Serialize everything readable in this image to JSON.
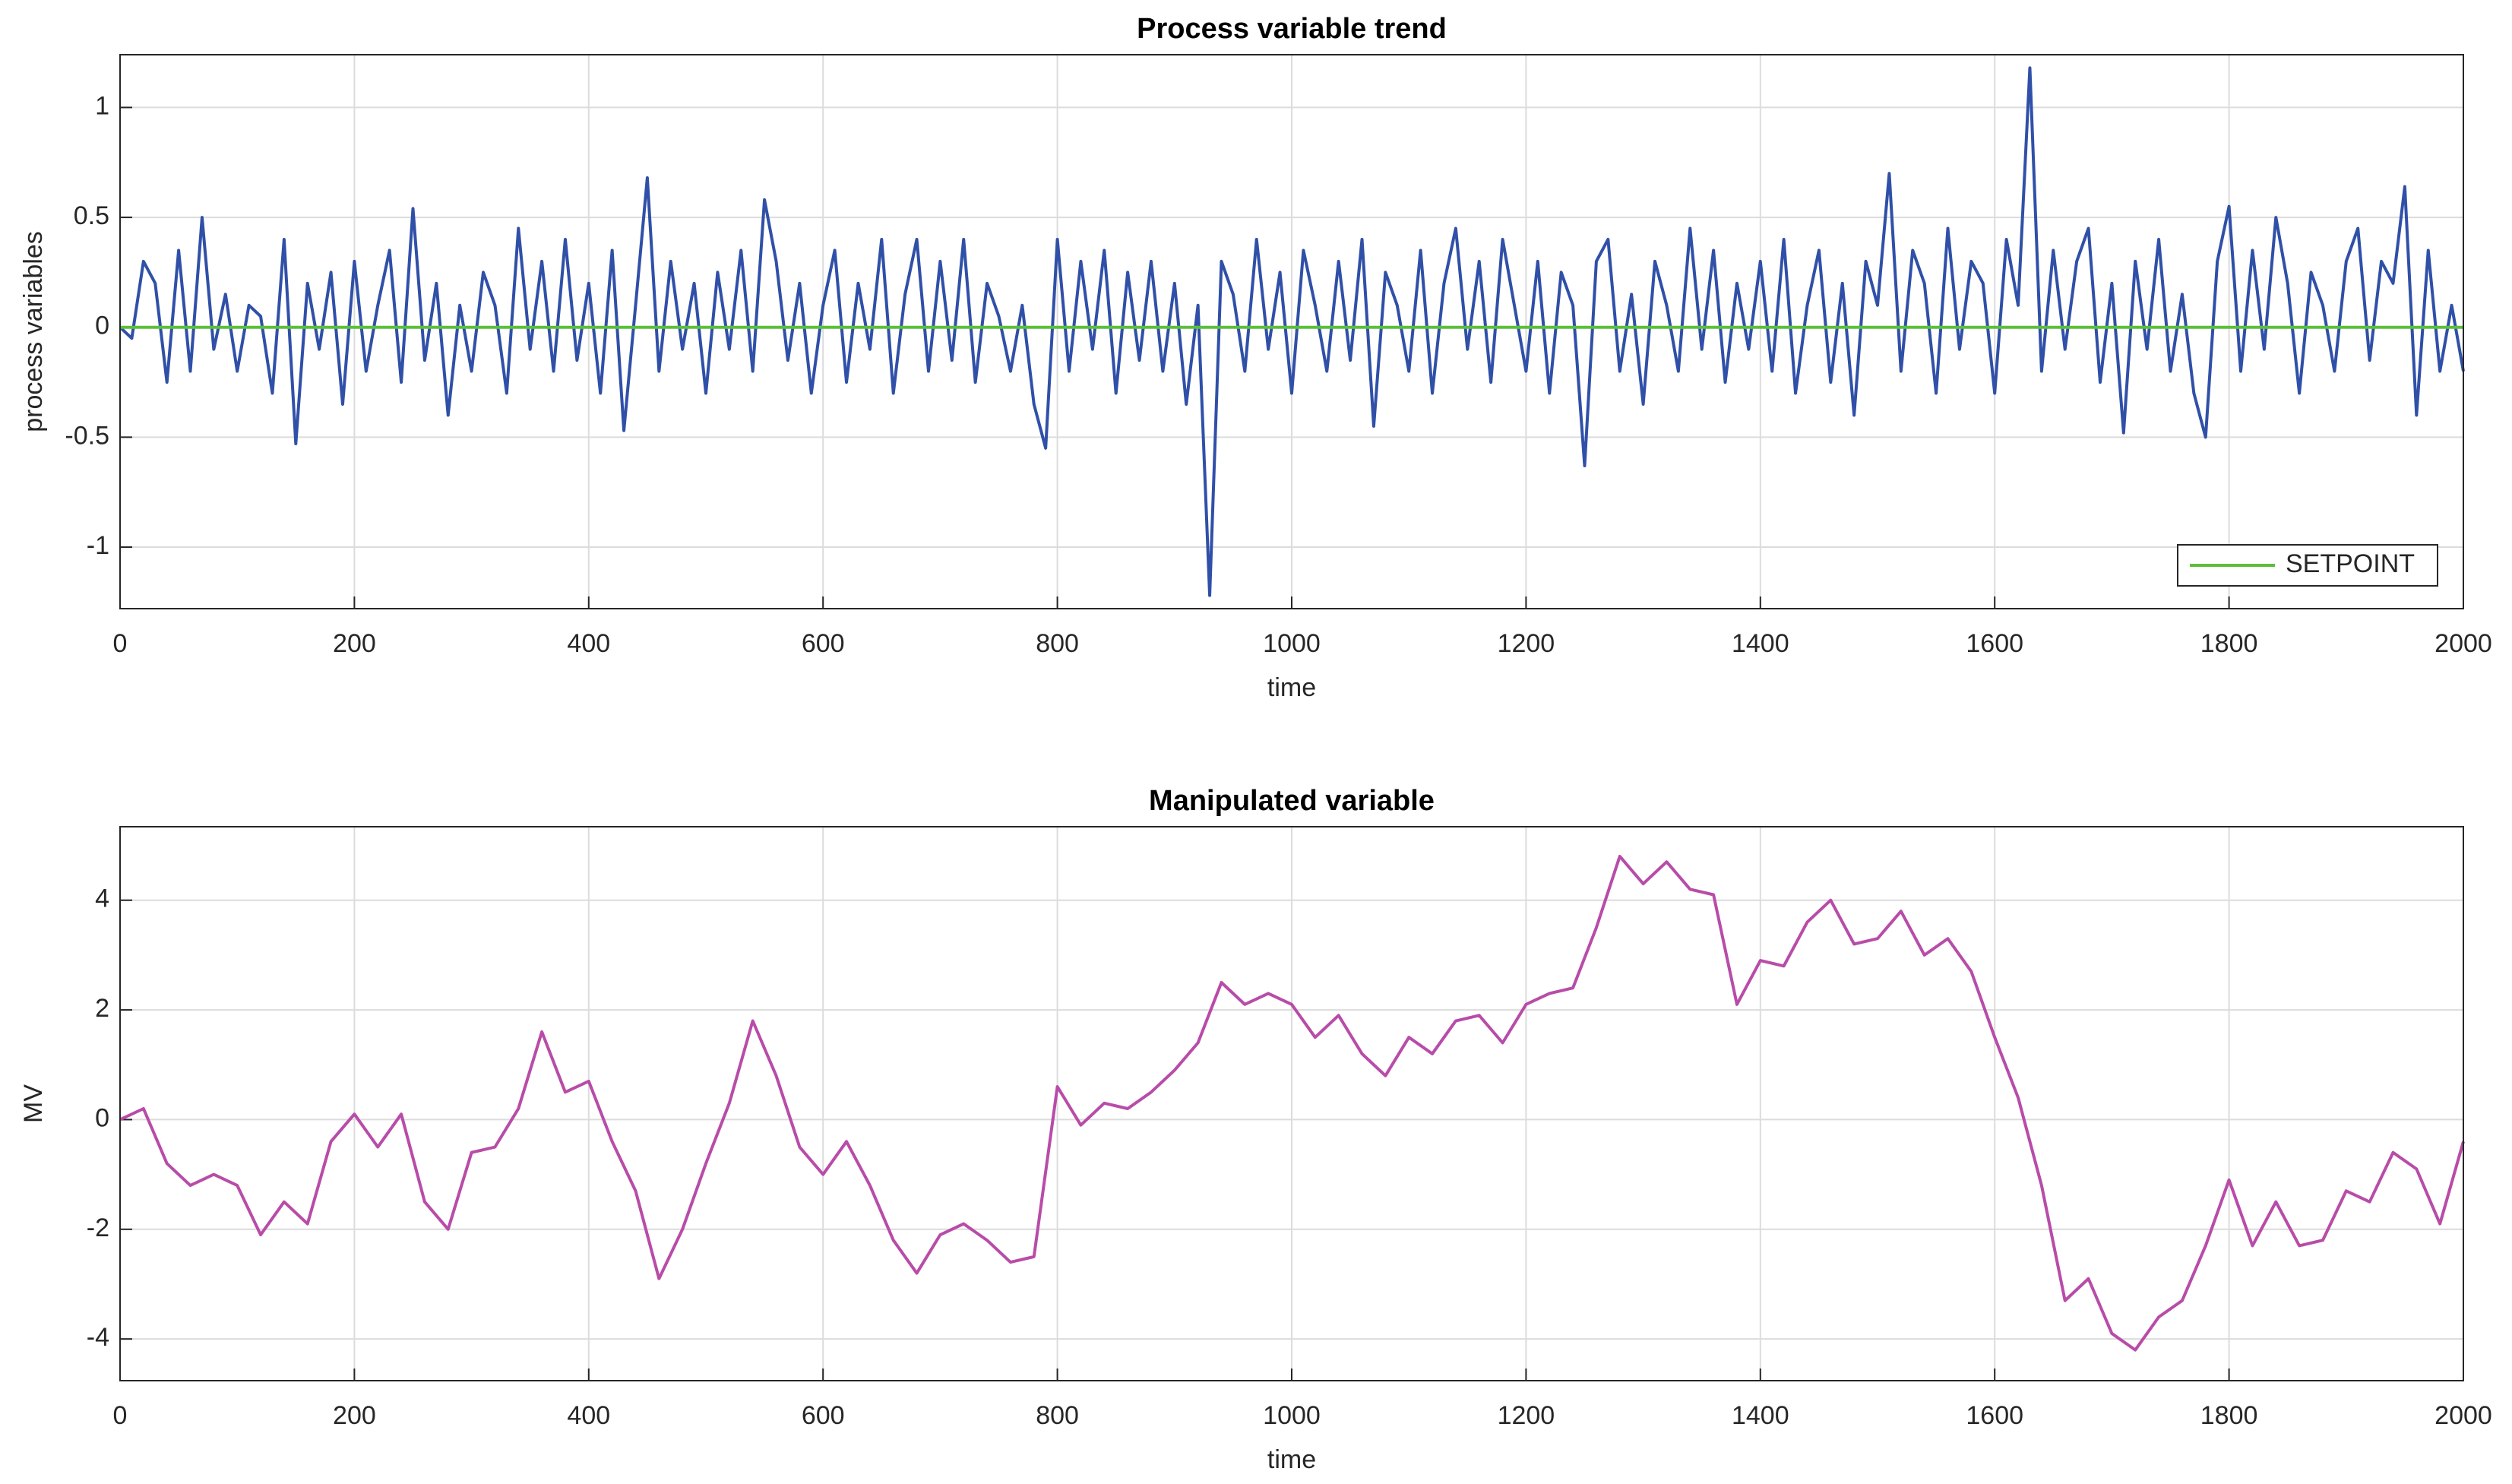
{
  "chart_data": [
    {
      "type": "line",
      "title": "Process variable trend",
      "xlabel": "time",
      "ylabel": "process variables",
      "xlim": [
        0,
        2000
      ],
      "xticks": [
        0,
        200,
        400,
        600,
        800,
        1000,
        1200,
        1400,
        1600,
        1800,
        2000
      ],
      "ylim": [
        -1.28,
        1.24
      ],
      "yticks": [
        -1,
        -0.5,
        0,
        0.5,
        1
      ],
      "grid": true,
      "legend": "lower right",
      "series": [
        {
          "color": "#3050a8",
          "x": [
            0,
            10,
            20,
            30,
            40,
            50,
            60,
            70,
            80,
            90,
            100,
            110,
            120,
            130,
            140,
            150,
            160,
            170,
            180,
            190,
            200,
            210,
            220,
            230,
            240,
            250,
            260,
            270,
            280,
            290,
            300,
            310,
            320,
            330,
            340,
            350,
            360,
            370,
            380,
            390,
            400,
            410,
            420,
            430,
            440,
            450,
            460,
            470,
            480,
            490,
            500,
            510,
            520,
            530,
            540,
            550,
            560,
            570,
            580,
            590,
            600,
            610,
            620,
            630,
            640,
            650,
            660,
            670,
            680,
            690,
            700,
            710,
            720,
            730,
            740,
            750,
            760,
            770,
            780,
            790,
            800,
            810,
            820,
            830,
            840,
            850,
            860,
            870,
            880,
            890,
            900,
            910,
            920,
            930,
            940,
            950,
            960,
            970,
            980,
            990,
            1000,
            1010,
            1020,
            1030,
            1040,
            1050,
            1060,
            1070,
            1080,
            1090,
            1100,
            1110,
            1120,
            1130,
            1140,
            1150,
            1160,
            1170,
            1180,
            1190,
            1200,
            1210,
            1220,
            1230,
            1240,
            1250,
            1260,
            1270,
            1280,
            1290,
            1300,
            1310,
            1320,
            1330,
            1340,
            1350,
            1360,
            1370,
            1380,
            1390,
            1400,
            1410,
            1420,
            1430,
            1440,
            1450,
            1460,
            1470,
            1480,
            1490,
            1500,
            1510,
            1520,
            1530,
            1540,
            1550,
            1560,
            1570,
            1580,
            1590,
            1600,
            1610,
            1620,
            1630,
            1640,
            1650,
            1660,
            1670,
            1680,
            1690,
            1700,
            1710,
            1720,
            1730,
            1740,
            1750,
            1760,
            1770,
            1780,
            1790,
            1800,
            1810,
            1820,
            1830,
            1840,
            1850,
            1860,
            1870,
            1880,
            1890,
            1900,
            1910,
            1920,
            1930,
            1940,
            1950,
            1960,
            1970,
            1980,
            1990,
            2000
          ],
          "values": [
            0,
            -0.05,
            0.3,
            0.2,
            -0.25,
            0.35,
            -0.2,
            0.5,
            -0.1,
            0.15,
            -0.2,
            0.1,
            0.05,
            -0.3,
            0.4,
            -0.53,
            0.2,
            -0.1,
            0.25,
            -0.35,
            0.3,
            -0.2,
            0.1,
            0.35,
            -0.25,
            0.54,
            -0.15,
            0.2,
            -0.4,
            0.1,
            -0.2,
            0.25,
            0.1,
            -0.3,
            0.45,
            -0.1,
            0.3,
            -0.2,
            0.4,
            -0.15,
            0.2,
            -0.3,
            0.35,
            -0.47,
            0.1,
            0.68,
            -0.2,
            0.3,
            -0.1,
            0.2,
            -0.3,
            0.25,
            -0.1,
            0.35,
            -0.2,
            0.58,
            0.3,
            -0.15,
            0.2,
            -0.3,
            0.1,
            0.35,
            -0.25,
            0.2,
            -0.1,
            0.4,
            -0.3,
            0.15,
            0.4,
            -0.2,
            0.3,
            -0.15,
            0.4,
            -0.25,
            0.2,
            0.05,
            -0.2,
            0.1,
            -0.35,
            -0.55,
            0.4,
            -0.2,
            0.3,
            -0.1,
            0.35,
            -0.3,
            0.25,
            -0.15,
            0.3,
            -0.2,
            0.2,
            -0.35,
            0.1,
            -1.22,
            0.3,
            0.15,
            -0.2,
            0.4,
            -0.1,
            0.25,
            -0.3,
            0.35,
            0.1,
            -0.2,
            0.3,
            -0.15,
            0.4,
            -0.45,
            0.25,
            0.1,
            -0.2,
            0.35,
            -0.3,
            0.2,
            0.45,
            -0.1,
            0.3,
            -0.25,
            0.4,
            0.1,
            -0.2,
            0.3,
            -0.3,
            0.25,
            0.1,
            -0.63,
            0.3,
            0.4,
            -0.2,
            0.15,
            -0.35,
            0.3,
            0.1,
            -0.2,
            0.45,
            -0.1,
            0.35,
            -0.25,
            0.2,
            -0.1,
            0.3,
            -0.2,
            0.4,
            -0.3,
            0.1,
            0.35,
            -0.25,
            0.2,
            -0.4,
            0.3,
            0.1,
            0.7,
            -0.2,
            0.35,
            0.2,
            -0.3,
            0.45,
            -0.1,
            0.3,
            0.2,
            -0.3,
            0.4,
            0.1,
            1.18,
            -0.2,
            0.35,
            -0.1,
            0.3,
            0.45,
            -0.25,
            0.2,
            -0.48,
            0.3,
            -0.1,
            0.4,
            -0.2,
            0.15,
            -0.3,
            -0.5,
            0.3,
            0.55,
            -0.2,
            0.35,
            -0.1,
            0.5,
            0.2,
            -0.3,
            0.25,
            0.1,
            -0.2,
            0.3,
            0.45,
            -0.15,
            0.3,
            0.2,
            0.64,
            -0.4,
            0.35,
            -0.2,
            0.1,
            -0.2
          ]
        },
        {
          "name": "SETPOINT",
          "color": "#5cbf3a",
          "x": [
            0,
            2000
          ],
          "values": [
            0,
            0
          ]
        }
      ]
    },
    {
      "type": "line",
      "title": "Manipulated variable",
      "xlabel": "time",
      "ylabel": "MV",
      "xlim": [
        0,
        2000
      ],
      "xticks": [
        0,
        200,
        400,
        600,
        800,
        1000,
        1200,
        1400,
        1600,
        1800,
        2000
      ],
      "ylim": [
        -4.76,
        5.34
      ],
      "yticks": [
        -4,
        -2,
        0,
        2,
        4
      ],
      "grid": true,
      "series": [
        {
          "color": "#b84ca8",
          "x": [
            0,
            20,
            40,
            60,
            80,
            100,
            120,
            140,
            160,
            180,
            200,
            220,
            240,
            260,
            280,
            300,
            320,
            340,
            360,
            380,
            400,
            420,
            440,
            460,
            480,
            500,
            520,
            540,
            560,
            580,
            600,
            620,
            640,
            660,
            680,
            700,
            720,
            740,
            760,
            780,
            800,
            820,
            840,
            860,
            880,
            900,
            920,
            940,
            960,
            980,
            1000,
            1020,
            1040,
            1060,
            1080,
            1100,
            1120,
            1140,
            1160,
            1180,
            1200,
            1220,
            1240,
            1260,
            1280,
            1300,
            1320,
            1340,
            1360,
            1380,
            1400,
            1420,
            1440,
            1460,
            1480,
            1500,
            1520,
            1540,
            1560,
            1580,
            1600,
            1620,
            1640,
            1660,
            1680,
            1700,
            1720,
            1740,
            1760,
            1780,
            1800,
            1820,
            1840,
            1860,
            1880,
            1900,
            1920,
            1940,
            1960,
            1980,
            2000
          ],
          "values": [
            0,
            0.2,
            -0.8,
            -1.2,
            -1.0,
            -1.2,
            -2.1,
            -1.5,
            -1.9,
            -0.4,
            0.1,
            -0.5,
            0.1,
            -1.5,
            -2.0,
            -0.6,
            -0.5,
            0.2,
            1.6,
            0.5,
            0.7,
            -0.4,
            -1.3,
            -2.9,
            -2.0,
            -0.8,
            0.3,
            1.8,
            0.8,
            -0.5,
            -1.0,
            -0.4,
            -1.2,
            -2.2,
            -2.8,
            -2.1,
            -1.9,
            -2.2,
            -2.6,
            -2.5,
            0.6,
            -0.1,
            0.3,
            0.2,
            0.5,
            0.9,
            1.4,
            2.5,
            2.1,
            2.3,
            2.1,
            1.5,
            1.9,
            1.2,
            0.8,
            1.5,
            1.2,
            1.8,
            1.9,
            1.4,
            2.1,
            2.3,
            2.4,
            3.5,
            4.8,
            4.3,
            4.7,
            4.2,
            4.1,
            2.1,
            2.9,
            2.8,
            3.6,
            4.0,
            3.2,
            3.3,
            3.8,
            3.0,
            3.3,
            2.7,
            1.5,
            0.4,
            -1.2,
            -3.3,
            -2.9,
            -3.9,
            -4.2,
            -3.6,
            -3.3,
            -2.3,
            -1.1,
            -2.3,
            -1.5,
            -2.3,
            -2.2,
            -1.3,
            -1.5,
            -0.6,
            -0.9,
            -1.9,
            -0.4
          ]
        }
      ]
    }
  ]
}
